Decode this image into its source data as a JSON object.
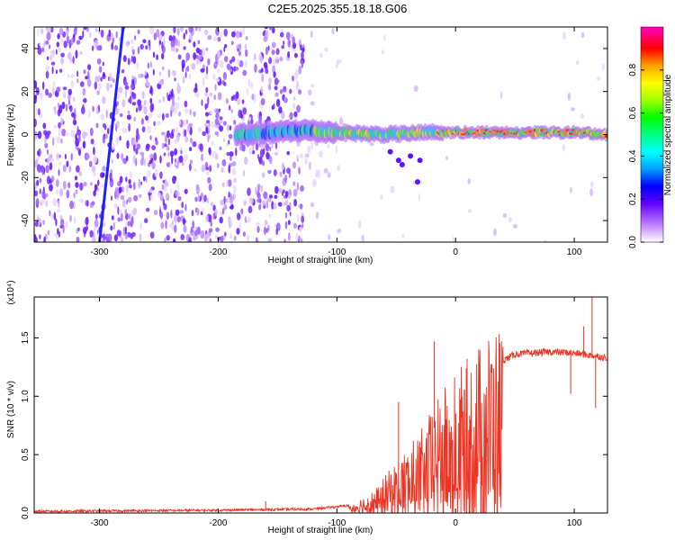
{
  "title": "C2E5.2025.355.18.18.G06",
  "chart_data": [
    {
      "type": "heatmap",
      "xlabel": "Height of straight line (km)",
      "ylabel": "Frequency (Hz)",
      "xlim": [
        -355,
        128
      ],
      "ylim": [
        -50,
        50
      ],
      "x_ticks": [
        -300,
        -200,
        -100,
        0,
        100
      ],
      "y_ticks": [
        -40,
        -20,
        0,
        20,
        40
      ],
      "colorbar": {
        "label": "Normalized spectral amplitude",
        "range": [
          0,
          1
        ],
        "ticks": [
          "0.0",
          "0.2",
          "0.4",
          "0.6",
          "0.8"
        ],
        "colors": [
          "#ffffff",
          "#c080ff",
          "#6000ff",
          "#0000ff",
          "#00a0ff",
          "#00ffff",
          "#00ff80",
          "#00ff00",
          "#a0ff00",
          "#ffff00",
          "#ffa000",
          "#ff0000",
          "#ff00c0"
        ]
      },
      "ridge": [
        {
          "x": -180,
          "y": 0
        },
        {
          "x": -150,
          "y": 1
        },
        {
          "x": -130,
          "y": 2
        },
        {
          "x": -100,
          "y": 1
        },
        {
          "x": -60,
          "y": 0
        },
        {
          "x": -20,
          "y": 1
        },
        {
          "x": 0,
          "y": 1
        },
        {
          "x": 50,
          "y": 1
        },
        {
          "x": 100,
          "y": 1
        },
        {
          "x": 128,
          "y": 0
        }
      ],
      "diagonal_streak": [
        {
          "x": -300,
          "y": -50
        },
        {
          "x": -280,
          "y": 50
        }
      ]
    },
    {
      "type": "line",
      "xlabel": "Height of straight line (km)",
      "ylabel": "SNR (10 * v/v)",
      "y_multiplier": "(x10⁴)",
      "xlim": [
        -355,
        128
      ],
      "ylim": [
        0,
        1.85
      ],
      "x_ticks": [
        -300,
        -200,
        -100,
        0,
        100
      ],
      "y_ticks": [
        "0.0",
        "0.5",
        "1.0",
        "1.5"
      ],
      "color": "#ee3322",
      "envelope": [
        {
          "x": -355,
          "y": 0.01
        },
        {
          "x": -200,
          "y": 0.02
        },
        {
          "x": -120,
          "y": 0.03
        },
        {
          "x": -90,
          "y": 0.06
        },
        {
          "x": -70,
          "y": 0.15
        },
        {
          "x": -50,
          "y": 0.35
        },
        {
          "x": -30,
          "y": 0.55
        },
        {
          "x": -10,
          "y": 0.85
        },
        {
          "x": 10,
          "y": 1.05
        },
        {
          "x": 30,
          "y": 1.25
        },
        {
          "x": 50,
          "y": 1.36
        },
        {
          "x": 80,
          "y": 1.38
        },
        {
          "x": 100,
          "y": 1.37
        },
        {
          "x": 128,
          "y": 1.33
        }
      ]
    }
  ]
}
